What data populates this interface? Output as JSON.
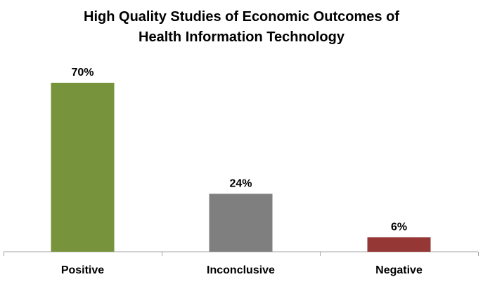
{
  "chart_data": {
    "type": "bar",
    "title_lines": [
      "High Quality Studies of Economic Outcomes of",
      "Health Information Technology"
    ],
    "categories": [
      "Positive",
      "Inconclusive",
      "Negative"
    ],
    "values": [
      70,
      24,
      6
    ],
    "data_labels": [
      "70%",
      "24%",
      "6%"
    ],
    "colors": [
      "#77933c",
      "#7f7f7f",
      "#953735"
    ],
    "axis_color": "#a6a6a6",
    "ylim": [
      0,
      100
    ],
    "grid": false,
    "legend": "none",
    "xlabel": "",
    "ylabel": ""
  }
}
